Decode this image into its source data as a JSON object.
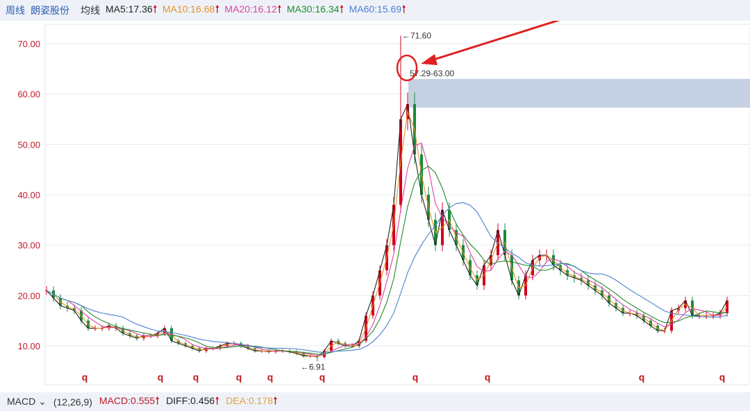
{
  "header": {
    "period": "周线",
    "stock_name": "朗姿股份",
    "ma_label": "均线",
    "ma": [
      {
        "label": "MA5:17.36",
        "color": "#222222"
      },
      {
        "label": "MA10:16.68",
        "color": "#e8902a"
      },
      {
        "label": "MA20:16.12",
        "color": "#e040a0"
      },
      {
        "label": "MA30:16.34",
        "color": "#1f8a2a"
      },
      {
        "label": "MA60:15.69",
        "color": "#4a7fd0"
      }
    ],
    "up_arrow": "🠑"
  },
  "footer": {
    "indicator": "MACD",
    "params": "(12,26,9)",
    "macd": "MACD:0.555",
    "diff": "DIFF:0.456",
    "dea": "DEA:0.178",
    "up_arrow": "🠑"
  },
  "chart_data": {
    "type": "candlestick",
    "ylim": [
      5,
      75
    ],
    "y_ticks": [
      "10.00",
      "20.00",
      "30.00",
      "40.00",
      "50.00",
      "60.00",
      "70.00"
    ],
    "closes": [
      21,
      19.5,
      18,
      17.5,
      17,
      15,
      13.5,
      13.5,
      13.5,
      14,
      13.5,
      12.5,
      12,
      11.5,
      12,
      12,
      12.5,
      13.5,
      11,
      10.5,
      10,
      9.5,
      9,
      9.5,
      9.5,
      10,
      10.5,
      10.5,
      10,
      9.5,
      9,
      9,
      8.8,
      9,
      9,
      8.8,
      8.5,
      8,
      8,
      7.8,
      9,
      11,
      10.5,
      10,
      10,
      11,
      16,
      20,
      25,
      30,
      38,
      55,
      58,
      48,
      40,
      35,
      30,
      37,
      33,
      30,
      27,
      24,
      22,
      26,
      28,
      33,
      28,
      23,
      20,
      24,
      27,
      28,
      28,
      26,
      25,
      24,
      23.5,
      23,
      22,
      21,
      20,
      18.5,
      17.5,
      16.5,
      16.5,
      16,
      15,
      14,
      13,
      13,
      17,
      17.5,
      19,
      16,
      16,
      16,
      16,
      16.5,
      19
    ],
    "high_label": "←71.60",
    "high_value": 71.6,
    "low_label": "←6.91",
    "low_value": 6.91,
    "zone": {
      "label": "57.29-63.00",
      "low": 57.29,
      "high": 63.0,
      "color": "#c5d1e3"
    },
    "markers": {
      "label": "q",
      "color": "#c0151b"
    },
    "annotation_color": "#e02020"
  }
}
